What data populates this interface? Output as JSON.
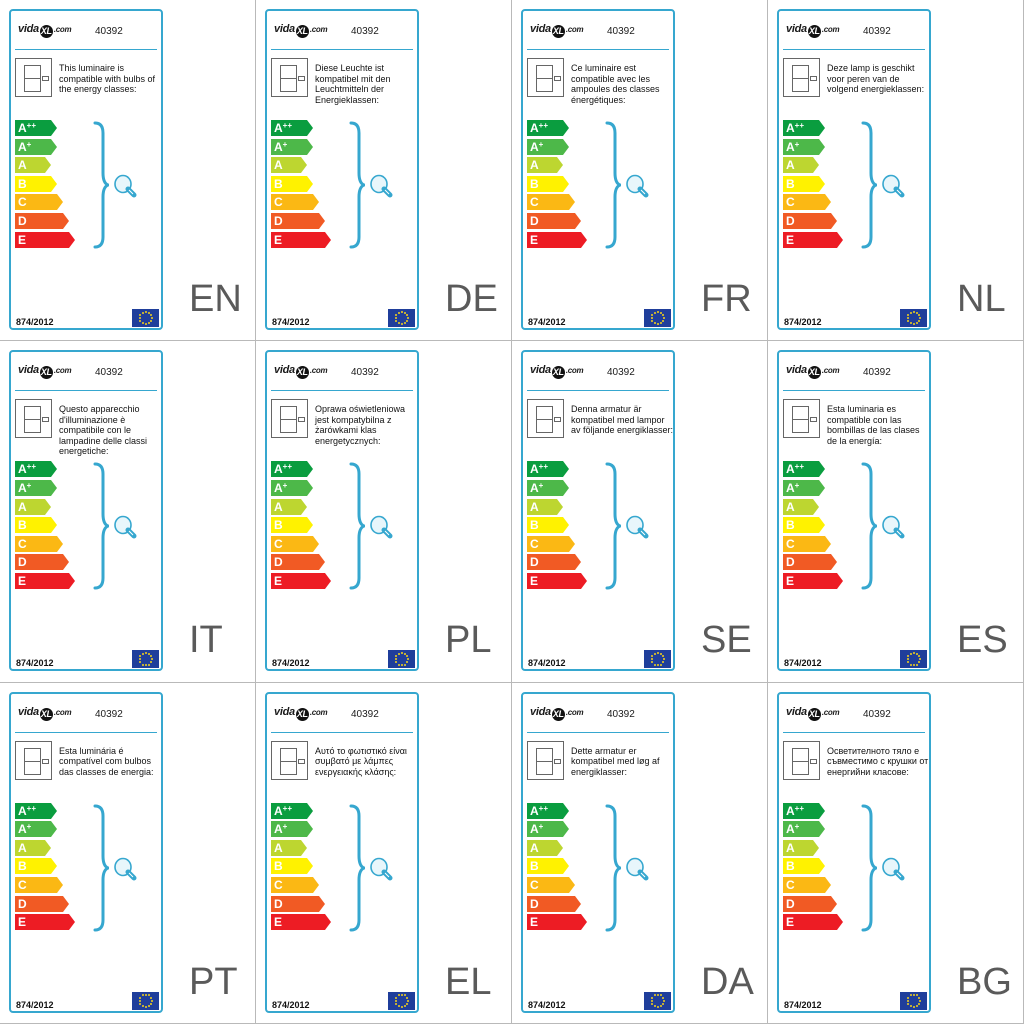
{
  "brand": {
    "prefix": "vida",
    "mark": "XL",
    "suffix": ".com"
  },
  "product_code": "40392",
  "regulation": "874/2012",
  "energy_classes": [
    {
      "letter": "A",
      "sup": "++",
      "color": "#0a9d3f"
    },
    {
      "letter": "A",
      "sup": "+",
      "color": "#4db849"
    },
    {
      "letter": "A",
      "sup": "",
      "color": "#bdd630"
    },
    {
      "letter": "B",
      "sup": "",
      "color": "#fff200"
    },
    {
      "letter": "C",
      "sup": "",
      "color": "#fbb814"
    },
    {
      "letter": "D",
      "sup": "",
      "color": "#f15a24"
    },
    {
      "letter": "E",
      "sup": "",
      "color": "#ed1c24"
    }
  ],
  "colors": {
    "card_border": "#36a7cf",
    "eu_flag": "#1f3e9b",
    "eu_stars": "#f4d21a"
  },
  "labels": [
    {
      "lang": "EN",
      "text": "This luminaire is compatible with bulbs of the energy classes:"
    },
    {
      "lang": "DE",
      "text": "Diese Leuchte ist kompatibel mit den Leuchtmitteln der Energieklassen:"
    },
    {
      "lang": "FR",
      "text": "Ce luminaire est compatible avec les ampoules des classes énergétiques:"
    },
    {
      "lang": "NL",
      "text": "Deze lamp is geschikt voor peren van de volgend energieklassen:"
    },
    {
      "lang": "IT",
      "text": "Questo apparecchio d'illuminazione è compatibile con le lampadine delle classi energetiche:"
    },
    {
      "lang": "PL",
      "text": "Oprawa oświetleniowa jest kompatybilna z żarówkami klas energetycznych:"
    },
    {
      "lang": "SE",
      "text": "Denna armatur är kompatibel med lampor av följande energiklasser:"
    },
    {
      "lang": "ES",
      "text": "Esta luminaria es compatible con las bombillas de las clases de la energía:"
    },
    {
      "lang": "PT",
      "text": "Esta luminária é compatível com bulbos das classes de energia:"
    },
    {
      "lang": "EL",
      "text": "Αυτό το φωτιστικό είναι συμβατό με λάμπες ενεργειακής κλάσης:"
    },
    {
      "lang": "DA",
      "text": "Dette armatur er kompatibel med løg af energiklasser:"
    },
    {
      "lang": "BG",
      "text": "Осветителното тяло е съвместимо с крушки от енергийни класове:"
    }
  ]
}
